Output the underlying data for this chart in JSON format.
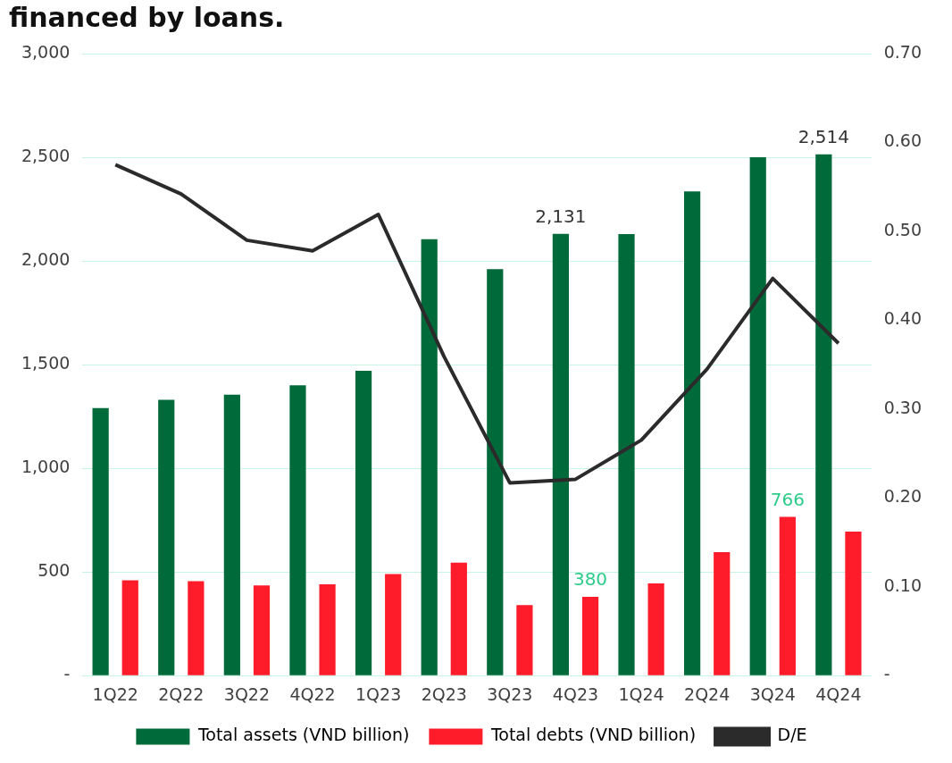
{
  "chart_data": {
    "type": "bar",
    "title": "financed by loans.",
    "categories": [
      "1Q22",
      "2Q22",
      "3Q22",
      "4Q22",
      "1Q23",
      "2Q23",
      "3Q23",
      "4Q23",
      "1Q24",
      "2Q24",
      "3Q24",
      "4Q24"
    ],
    "series": [
      {
        "name": "Total assets (VND billion)",
        "color": "#006a3b",
        "values": [
          1290,
          1330,
          1355,
          1400,
          1470,
          2105,
          1960,
          2131,
          2130,
          2335,
          2500,
          2514
        ],
        "value_labels": [
          null,
          null,
          null,
          null,
          null,
          null,
          null,
          "2,131",
          null,
          null,
          null,
          "2,514"
        ]
      },
      {
        "name": "Total debts (VND billion)",
        "color": "#fe1c2b",
        "values": [
          460,
          455,
          435,
          440,
          490,
          545,
          340,
          380,
          445,
          595,
          766,
          695
        ],
        "value_labels": [
          null,
          null,
          null,
          null,
          null,
          null,
          null,
          "380",
          null,
          null,
          "766",
          null
        ]
      },
      {
        "name": "D/E",
        "type": "line",
        "axis": "y2",
        "color": "#2b2b2b",
        "values": [
          0.575,
          0.542,
          0.49,
          0.478,
          0.519,
          0.359,
          0.217,
          0.221,
          0.265,
          0.345,
          0.447,
          0.374
        ]
      }
    ],
    "ylim": [
      0,
      3000
    ],
    "yticks": [
      {
        "value": 0,
        "label": "-"
      },
      500,
      {
        "value": 1000,
        "label": "1,000"
      },
      {
        "value": 1500,
        "label": "1,500"
      },
      {
        "value": 2000,
        "label": "2,000"
      },
      {
        "value": 2500,
        "label": "2,500"
      },
      {
        "value": 3000,
        "label": "3,000"
      }
    ],
    "y2lim": [
      0,
      0.7
    ],
    "y2ticks": [
      {
        "value": 0,
        "label": "-"
      },
      {
        "value": 0.1,
        "label": "0.10"
      },
      {
        "value": 0.2,
        "label": "0.20"
      },
      {
        "value": 0.3,
        "label": "0.30"
      },
      {
        "value": 0.4,
        "label": "0.40"
      },
      {
        "value": 0.5,
        "label": "0.50"
      },
      {
        "value": 0.6,
        "label": "0.60"
      },
      {
        "value": 0.7,
        "label": "0.70"
      }
    ],
    "grid": "y",
    "legend": "bottom",
    "marker": "none",
    "line_style": "solid"
  }
}
